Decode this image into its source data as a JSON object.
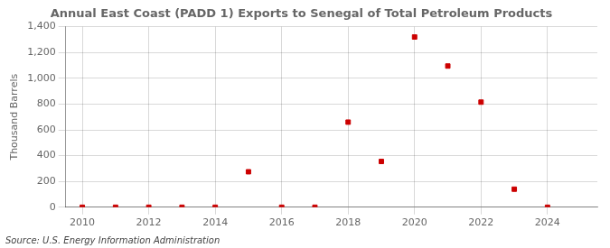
{
  "chart_data": {
    "type": "scatter",
    "title": "Annual East Coast (PADD 1) Exports to Senegal of Total Petroleum Products",
    "ylabel": "Thousand Barrels",
    "source": "Source: U.S. Energy Information Administration",
    "x": [
      2010,
      2011,
      2012,
      2013,
      2014,
      2015,
      2016,
      2017,
      2018,
      2019,
      2020,
      2021,
      2022,
      2023,
      2024
    ],
    "values": [
      0,
      0,
      0,
      0,
      0,
      275,
      0,
      0,
      660,
      355,
      1320,
      1095,
      815,
      140,
      0
    ],
    "color": "#cc0000",
    "marker": "square",
    "xlim": [
      2009.5,
      2025.5
    ],
    "xticks": [
      2010,
      2012,
      2014,
      2016,
      2018,
      2020,
      2022,
      2024
    ],
    "ylim": [
      0,
      1400
    ],
    "yticks": [
      0,
      200,
      400,
      600,
      800,
      {
        "value": 1000,
        "label": "1,000"
      },
      {
        "value": 1200,
        "label": "1,200"
      },
      {
        "value": 1400,
        "label": "1,400"
      }
    ],
    "grid": true,
    "legend": false
  }
}
